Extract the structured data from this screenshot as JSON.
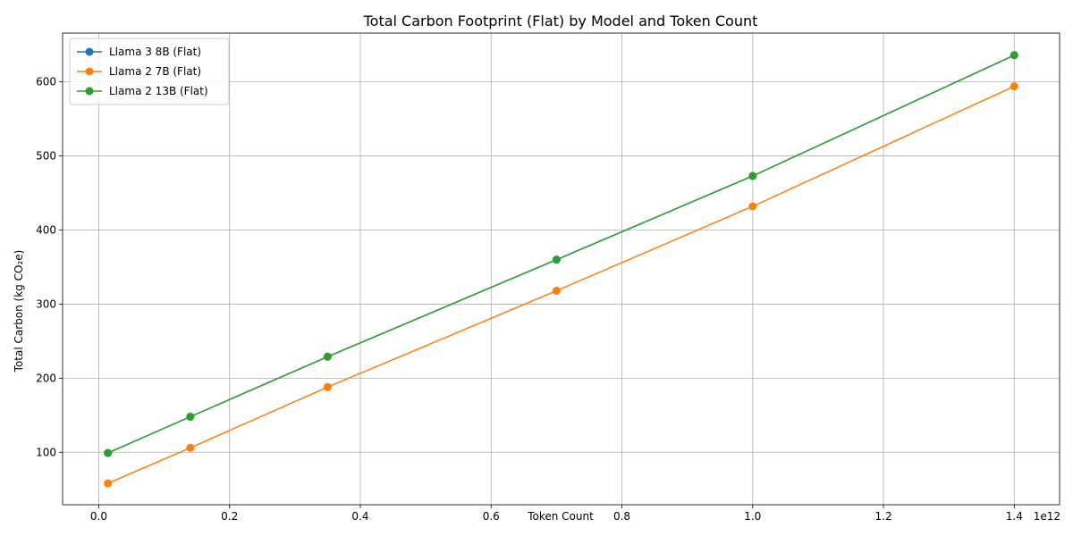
{
  "chart_data": {
    "type": "line",
    "title": "Total Carbon Footprint (Flat) by Model and Token Count",
    "xlabel": "Token Count",
    "ylabel": "Total Carbon (kg CO₂e)",
    "x_offset_label": "1e12",
    "x": [
      0.014,
      0.14,
      0.35,
      0.7,
      1.0,
      1.4
    ],
    "xlim": [
      -0.0553,
      1.4693
    ],
    "ylim": [
      29.2,
      665.9
    ],
    "xticks": [
      0.0,
      0.2,
      0.4,
      0.6,
      0.8,
      1.0,
      1.2,
      1.4
    ],
    "xtick_labels": [
      "0.0",
      "0.2",
      "0.4",
      "0.6",
      "0.8",
      "1.0",
      "1.2",
      "1.4"
    ],
    "yticks": [
      100,
      200,
      300,
      400,
      500,
      600
    ],
    "ytick_labels": [
      "100",
      "200",
      "300",
      "400",
      "500",
      "600"
    ],
    "grid": true,
    "legend_position": "upper-left",
    "series": [
      {
        "name": "Llama 3 8B (Flat)",
        "color": "#1f77b4",
        "values": [
          99,
          148,
          229,
          360,
          473,
          636
        ]
      },
      {
        "name": "Llama 2 7B (Flat)",
        "color": "#ff7f0e",
        "values": [
          58,
          106,
          188,
          318,
          432,
          594
        ]
      },
      {
        "name": "Llama 2 13B (Flat)",
        "color": "#2ca02c",
        "values": [
          99,
          148,
          229,
          360,
          473,
          636
        ]
      }
    ]
  }
}
